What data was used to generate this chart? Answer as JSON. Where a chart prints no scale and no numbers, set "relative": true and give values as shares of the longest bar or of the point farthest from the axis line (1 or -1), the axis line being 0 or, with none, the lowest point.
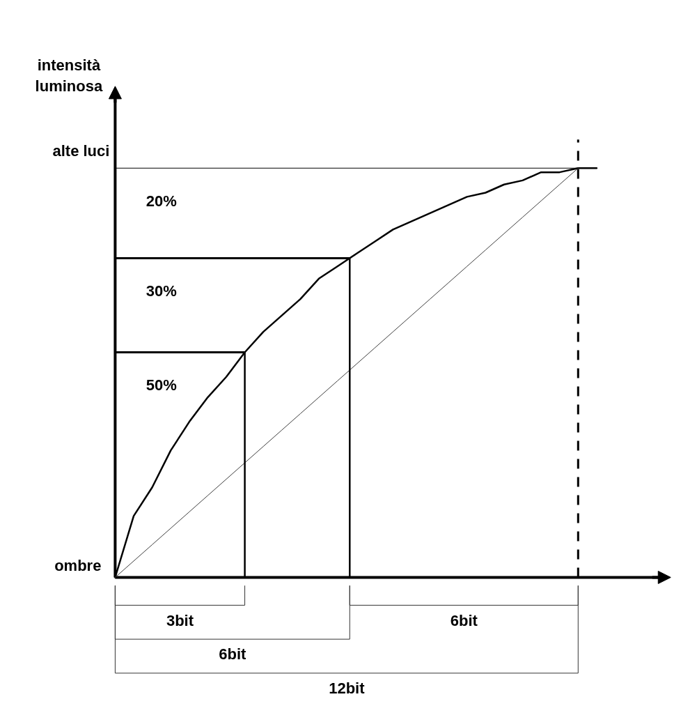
{
  "chart_data": {
    "type": "line",
    "ylabel": "intensità luminosa",
    "relative": true,
    "categories": [
      null,
      null,
      null,
      null,
      null,
      null,
      null,
      null,
      null,
      null,
      null,
      null,
      null,
      null,
      null,
      null,
      null,
      null,
      null,
      null,
      null,
      null,
      null,
      null,
      null,
      null,
      null
    ],
    "series": [
      {
        "color": "#000000",
        "values": [
          0,
          0.15,
          0.22,
          0.31,
          0.38,
          0.44,
          0.49,
          0.55,
          0.6,
          0.64,
          0.68,
          0.73,
          0.76,
          0.79,
          0.82,
          0.85,
          0.87,
          0.89,
          0.91,
          0.93,
          0.94,
          0.96,
          0.97,
          0.99,
          0.99,
          1,
          1
        ]
      },
      {
        "color": "#404040",
        "values": [
          0,
          0.04,
          0.08,
          0.12,
          0.16,
          0.2,
          0.24,
          0.28,
          0.32,
          0.36,
          0.4,
          0.44,
          0.48,
          0.52,
          0.56,
          0.6,
          0.64,
          0.68,
          0.72,
          0.76,
          0.8,
          0.84,
          0.88,
          0.92,
          0.96,
          1,
          null
        ]
      }
    ],
    "ref_lines": [
      {
        "axis": "y",
        "value": 1,
        "label": "alte luci"
      },
      {
        "axis": "y",
        "value": 0.78
      },
      {
        "axis": "y",
        "value": 0.55
      }
    ],
    "annotations": [
      "20%",
      "30%",
      "50%",
      "ombre",
      "3bit",
      "6bit",
      "6bit",
      "12bit"
    ]
  }
}
